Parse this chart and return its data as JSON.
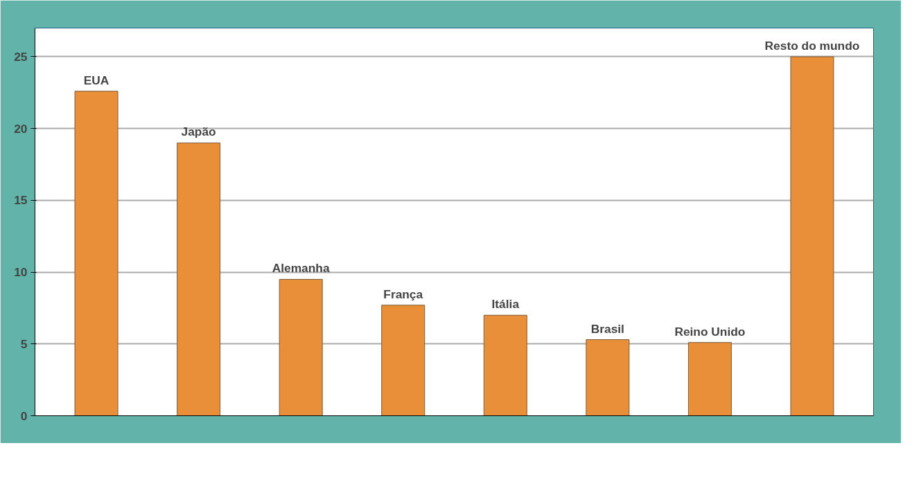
{
  "chart_data": {
    "type": "bar",
    "categories": [
      "EUA",
      "Japão",
      "Alemanha",
      "França",
      "Itália",
      "Brasil",
      "Reino Unido",
      "Resto do mundo"
    ],
    "values": [
      22.6,
      19.0,
      9.5,
      7.7,
      7.0,
      5.3,
      5.1,
      25.0
    ],
    "color": "#e88f37",
    "ylim": [
      0,
      27
    ],
    "yticks": [
      0,
      5,
      10,
      15,
      20,
      25
    ],
    "grid": "y"
  }
}
